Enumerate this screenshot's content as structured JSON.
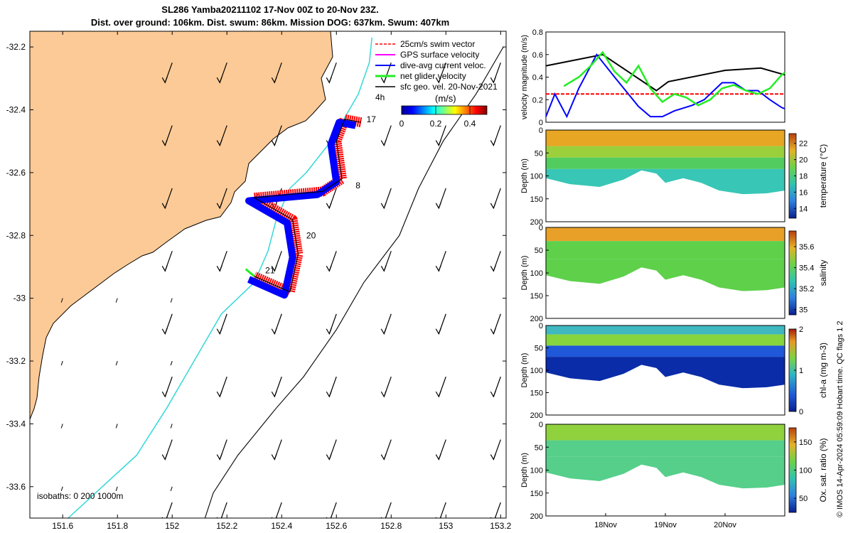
{
  "title": "SL286 Yamba20211102 17-Nov 00Z to 20-Nov 23Z.",
  "subtitle": "Dist. over ground: 106km. Dist. swum: 86km. Mission DOG: 637km. Swum: 407km",
  "footer": "© IMOS 14-Apr-2024 05:59:09 Hobart time. QC flags 1  2",
  "colors": {
    "land": "#fcca96",
    "glider_red": "#ff0000",
    "glider_blue": "#0000ff",
    "net_green": "#22ee22",
    "isobath_cyan": "#35d8d8"
  },
  "chart_data": [
    {
      "type": "map",
      "name": "glider-track-map",
      "x_ticks": [
        151.6,
        151.8,
        152,
        152.2,
        152.4,
        152.6,
        152.8,
        153,
        153.2
      ],
      "x_tick_labels": [
        "151.6",
        "151.8",
        "152",
        "152.2",
        "152.4",
        "152.6",
        "152.8",
        "153",
        "153.2"
      ],
      "y_ticks": [
        -32.2,
        -32.4,
        -32.6,
        -32.8,
        -33,
        -33.2,
        -33.4,
        -33.6
      ],
      "y_tick_labels": [
        "-32.2",
        "-32.4",
        "-32.6",
        "-32.8",
        "-33",
        "-33.2",
        "-33.4",
        "-33.6"
      ],
      "xlim": [
        151.48,
        153.22
      ],
      "ylim": [
        -33.7,
        -32.15
      ],
      "legend": {
        "placement": "top-right",
        "entries": [
          "25cm/s swim vector",
          "GPS surface velocity",
          "dive-avg current veloc.",
          "net glider velocity",
          "sfc geo. vel. 20-Nov-2021"
        ],
        "time_step": "4h"
      },
      "colorbar": {
        "label": "(m/s)",
        "range": [
          0,
          0.5
        ],
        "ticks": [
          0,
          0.2,
          0.4
        ],
        "tick_labels": [
          "0",
          "0.2",
          "0.4"
        ]
      },
      "isobath_label": "isobaths: 0   200  1000m",
      "day_labels": [
        {
          "text": "17",
          "lon": 152.71,
          "lat": -32.44
        },
        {
          "text": "8",
          "lon": 152.67,
          "lat": -32.65
        },
        {
          "text": "20",
          "lon": 152.49,
          "lat": -32.81
        },
        {
          "text": "21",
          "lon": 152.34,
          "lat": -32.92
        }
      ],
      "glider_track": [
        [
          152.69,
          -32.44
        ],
        [
          152.63,
          -32.43
        ],
        [
          152.6,
          -32.5
        ],
        [
          152.62,
          -32.62
        ],
        [
          152.55,
          -32.66
        ],
        [
          152.3,
          -32.68
        ],
        [
          152.44,
          -32.75
        ],
        [
          152.46,
          -32.86
        ],
        [
          152.43,
          -32.98
        ],
        [
          152.3,
          -32.93
        ]
      ],
      "isobath_1000m": [
        [
          153.21,
          -32.2
        ],
        [
          153.11,
          -32.35
        ],
        [
          152.99,
          -32.5
        ],
        [
          152.9,
          -32.65
        ],
        [
          152.83,
          -32.8
        ],
        [
          152.7,
          -32.95
        ],
        [
          152.6,
          -33.1
        ],
        [
          152.48,
          -33.25
        ],
        [
          152.38,
          -33.35
        ],
        [
          152.24,
          -33.5
        ],
        [
          152.15,
          -33.62
        ],
        [
          152.12,
          -33.7
        ]
      ],
      "isobath_200m": [
        [
          152.73,
          -32.17
        ],
        [
          152.72,
          -32.25
        ],
        [
          152.68,
          -32.35
        ],
        [
          152.58,
          -32.5
        ],
        [
          152.49,
          -32.6
        ],
        [
          152.43,
          -32.65
        ],
        [
          152.38,
          -32.75
        ],
        [
          152.35,
          -32.85
        ],
        [
          152.3,
          -32.95
        ],
        [
          152.18,
          -33.05
        ],
        [
          152.08,
          -33.2
        ],
        [
          151.98,
          -33.35
        ],
        [
          151.87,
          -33.5
        ],
        [
          151.72,
          -33.62
        ],
        [
          151.62,
          -33.7
        ]
      ]
    },
    {
      "type": "line",
      "name": "velocity-magnitude",
      "ylabel": "velocity magnitude (m/s)",
      "ylim": [
        0,
        0.8
      ],
      "y_ticks": [
        0,
        0.2,
        0.4,
        0.6,
        0.8
      ],
      "y_tick_labels": [
        "0",
        "0.2",
        "0.4",
        "0.6",
        "0.8"
      ],
      "xlim": [
        17,
        21
      ],
      "series": [
        {
          "color": "#000000",
          "x": [
            17,
            17.95,
            18.85,
            19.05,
            20,
            20.6,
            21
          ],
          "values": [
            0.5,
            0.6,
            0.28,
            0.36,
            0.46,
            0.48,
            0.42
          ]
        },
        {
          "color": "#ff0000",
          "dashed": true,
          "x": [
            17,
            21
          ],
          "values": [
            0.25,
            0.25
          ]
        },
        {
          "color": "#0000ff",
          "x": [
            17,
            17.15,
            17.35,
            17.55,
            17.85,
            18.15,
            18.55,
            18.75,
            18.95,
            19.15,
            19.45,
            19.65,
            19.95,
            20.15,
            20.35,
            20.55,
            20.75,
            20.95,
            21
          ],
          "values": [
            0.05,
            0.25,
            0.05,
            0.3,
            0.6,
            0.4,
            0.14,
            0.05,
            0.05,
            0.1,
            0.15,
            0.2,
            0.35,
            0.35,
            0.28,
            0.28,
            0.2,
            0.13,
            0.12
          ]
        },
        {
          "color": "#22ee22",
          "x": [
            17.3,
            17.55,
            17.75,
            17.95,
            18.15,
            18.35,
            18.55,
            18.75,
            18.95,
            19.15,
            19.35,
            19.55,
            19.75,
            19.95,
            20.15,
            20.35,
            20.55,
            20.75,
            20.95,
            21
          ],
          "values": [
            0.32,
            0.4,
            0.5,
            0.62,
            0.45,
            0.35,
            0.5,
            0.3,
            0.18,
            0.25,
            0.22,
            0.15,
            0.2,
            0.3,
            0.33,
            0.28,
            0.25,
            0.3,
            0.42,
            0.44
          ]
        }
      ]
    },
    {
      "type": "heatmap",
      "name": "temperature-section",
      "ylabel": "Depth (m)",
      "ylim": [
        0,
        200
      ],
      "y_ticks": [
        0,
        50,
        100,
        150,
        200
      ],
      "y_tick_labels": [
        "0",
        "50",
        "100",
        "150",
        "200"
      ],
      "colorbar": {
        "label": "temperature (°C)",
        "range": [
          12.8,
          23.2
        ],
        "ticks": [
          14,
          16,
          18,
          20,
          22
        ],
        "tick_labels": [
          "14",
          "16",
          "18",
          "20",
          "22"
        ]
      },
      "bottom_depth": [
        [
          17,
          105
        ],
        [
          17.4,
          118
        ],
        [
          17.9,
          124
        ],
        [
          18.3,
          108
        ],
        [
          18.6,
          88
        ],
        [
          18.85,
          95
        ],
        [
          19,
          115
        ],
        [
          19.3,
          105
        ],
        [
          19.6,
          115
        ],
        [
          19.9,
          132
        ],
        [
          20.3,
          140
        ],
        [
          20.7,
          138
        ],
        [
          21,
          132
        ]
      ],
      "layers": [
        {
          "top": 0,
          "bottom": 35,
          "value": 21.5
        },
        {
          "top": 35,
          "bottom": 60,
          "value": 19.5
        },
        {
          "top": 60,
          "bottom": 85,
          "value": 17
        },
        {
          "top": 85,
          "bottom": 140,
          "value": 15.5
        }
      ]
    },
    {
      "type": "heatmap",
      "name": "salinity-section",
      "ylabel": "Depth (m)",
      "ylim": [
        0,
        200
      ],
      "y_ticks": [
        0,
        50,
        100,
        150,
        200
      ],
      "y_tick_labels": [
        "0",
        "50",
        "100",
        "150",
        "200"
      ],
      "colorbar": {
        "label": "salinity",
        "range": [
          34.95,
          35.75
        ],
        "ticks": [
          35,
          35.2,
          35.4,
          35.6
        ],
        "tick_labels": [
          "35",
          "35.2",
          "35.4",
          "35.6"
        ]
      },
      "bottom_depth": [
        [
          17,
          105
        ],
        [
          17.4,
          118
        ],
        [
          17.9,
          124
        ],
        [
          18.3,
          108
        ],
        [
          18.6,
          88
        ],
        [
          18.85,
          95
        ],
        [
          19,
          115
        ],
        [
          19.3,
          105
        ],
        [
          19.6,
          115
        ],
        [
          19.9,
          132
        ],
        [
          20.3,
          140
        ],
        [
          20.7,
          138
        ],
        [
          21,
          132
        ]
      ],
      "layers": [
        {
          "top": 0,
          "bottom": 30,
          "value": 35.62
        },
        {
          "top": 30,
          "bottom": 70,
          "value": 35.42
        },
        {
          "top": 70,
          "bottom": 140,
          "value": 35.28
        }
      ]
    },
    {
      "type": "heatmap",
      "name": "chla-section",
      "ylabel": "Depth (m)",
      "ylim": [
        0,
        200
      ],
      "y_ticks": [
        0,
        50,
        100,
        150,
        200
      ],
      "y_tick_labels": [
        "0",
        "50",
        "100",
        "150",
        "200"
      ],
      "colorbar": {
        "label": "chl-a (mg m-3)",
        "range": [
          0,
          2
        ],
        "ticks": [
          0,
          1,
          2
        ],
        "tick_labels": [
          "0",
          "1",
          "2"
        ]
      },
      "bottom_depth": [
        [
          17,
          105
        ],
        [
          17.4,
          118
        ],
        [
          17.9,
          124
        ],
        [
          18.3,
          108
        ],
        [
          18.6,
          88
        ],
        [
          18.85,
          95
        ],
        [
          19,
          115
        ],
        [
          19.3,
          105
        ],
        [
          19.6,
          115
        ],
        [
          19.9,
          132
        ],
        [
          20.3,
          140
        ],
        [
          20.7,
          138
        ],
        [
          21,
          132
        ]
      ],
      "layers": [
        {
          "top": 0,
          "bottom": 20,
          "value": 1.1
        },
        {
          "top": 20,
          "bottom": 45,
          "value": 1.5
        },
        {
          "top": 45,
          "bottom": 70,
          "value": 0.6
        },
        {
          "top": 70,
          "bottom": 140,
          "value": 0.15
        }
      ]
    },
    {
      "type": "heatmap",
      "name": "oxygen-section",
      "ylabel": "Depth (m)",
      "ylim": [
        0,
        200
      ],
      "y_ticks": [
        0,
        50,
        100,
        150,
        200
      ],
      "y_tick_labels": [
        "0",
        "50",
        "100",
        "150",
        "200"
      ],
      "x_ticks": [
        18,
        19,
        20
      ],
      "x_tick_labels": [
        "18Nov",
        "19Nov",
        "20Nov"
      ],
      "colorbar": {
        "label": "Ox. sat. ratio (%)",
        "range": [
          25,
          175
        ],
        "ticks": [
          50,
          100,
          150
        ],
        "tick_labels": [
          "50",
          "100",
          "150"
        ]
      },
      "bottom_depth": [
        [
          17,
          105
        ],
        [
          17.4,
          118
        ],
        [
          17.9,
          124
        ],
        [
          18.3,
          108
        ],
        [
          18.6,
          88
        ],
        [
          18.85,
          95
        ],
        [
          19,
          115
        ],
        [
          19.3,
          105
        ],
        [
          19.6,
          115
        ],
        [
          19.9,
          132
        ],
        [
          20.3,
          140
        ],
        [
          20.7,
          138
        ],
        [
          21,
          132
        ]
      ],
      "layers": [
        {
          "top": 0,
          "bottom": 35,
          "value": 130
        },
        {
          "top": 35,
          "bottom": 70,
          "value": 112
        },
        {
          "top": 70,
          "bottom": 140,
          "value": 100
        }
      ]
    }
  ]
}
